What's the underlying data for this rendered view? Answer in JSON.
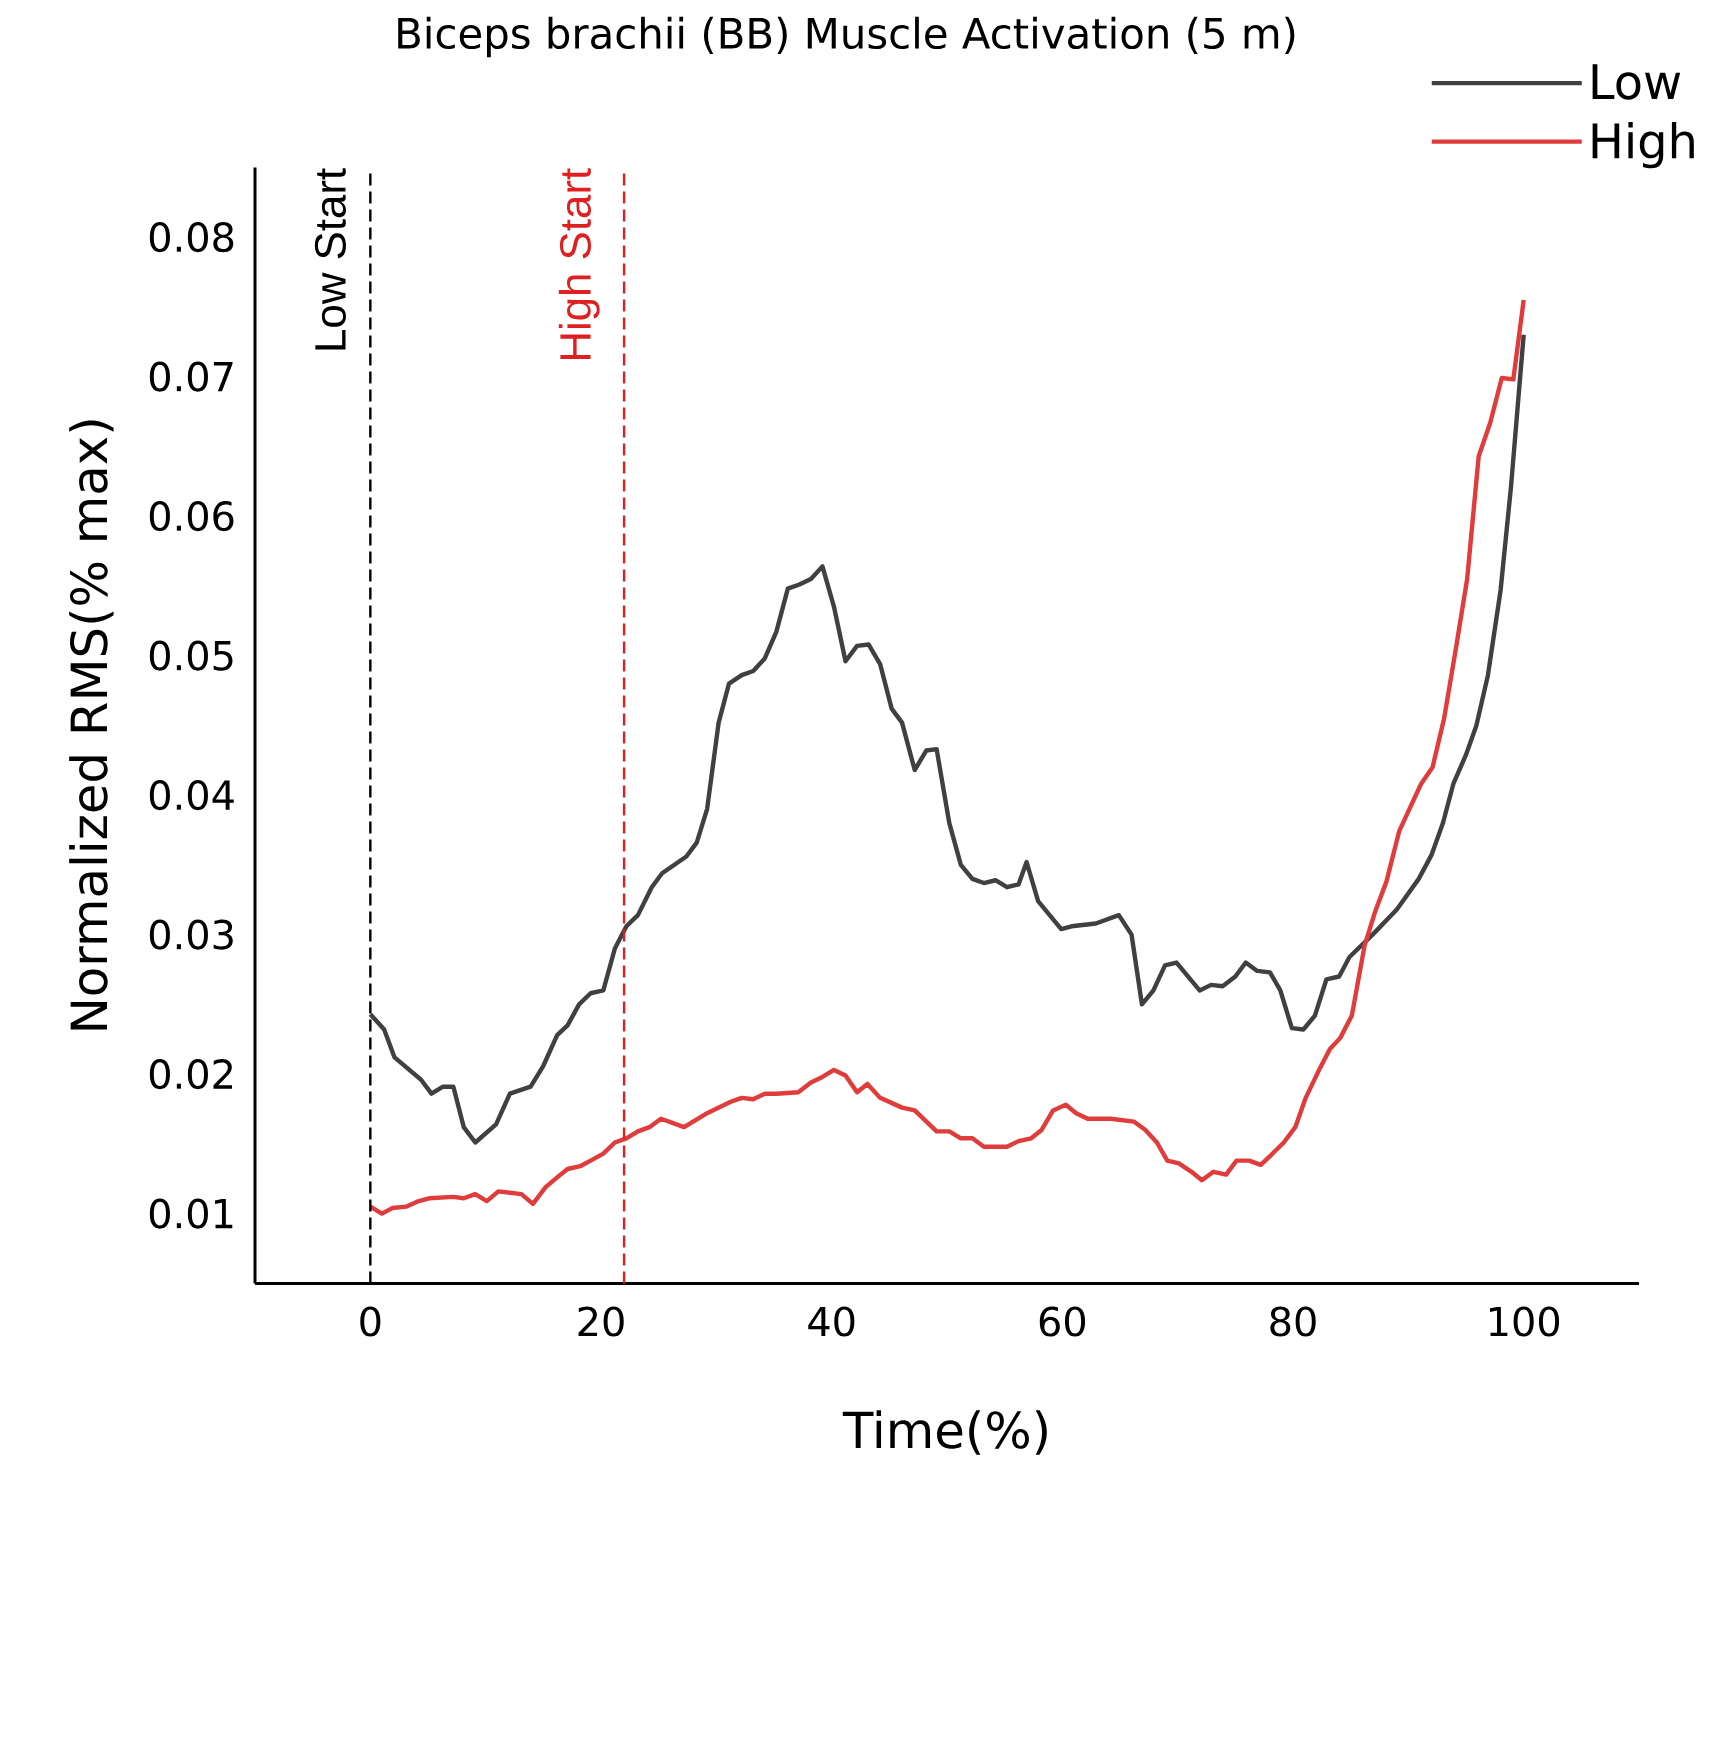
{
  "chart_data": {
    "type": "line",
    "title": "Biceps brachii  (BB)   Muscle Activation (5 m)",
    "xlabel": "Time(%)",
    "ylabel": "Normalized RMS(% max)",
    "xlim": [
      -10,
      110
    ],
    "ylim": [
      0.005,
      0.085
    ],
    "xticks": [
      0,
      20,
      40,
      60,
      80,
      100
    ],
    "yticks": [
      0.01,
      0.02,
      0.03,
      0.04,
      0.05,
      0.06,
      0.07,
      0.08
    ],
    "legend": "top right",
    "grid": false,
    "marker": "none",
    "line_style": "solid",
    "ref_lines": [
      {
        "axis": "x",
        "value": 0,
        "label": "Low Start",
        "color": "#000000",
        "line_style": "dashed"
      },
      {
        "axis": "x",
        "value": 22,
        "label": "High Start",
        "color": "#e02020",
        "line_style": "dashed"
      }
    ],
    "series": [
      {
        "name": "Low",
        "color": "#404040",
        "x": [
          0,
          1.2,
          2.1,
          4.4,
          5.3,
          6.3,
          7.2,
          8.1,
          9.1,
          10.9,
          12.1,
          13.9,
          15.0,
          16.2,
          17.1,
          18.1,
          19.1,
          20.2,
          21.2,
          22.2,
          23.2,
          24.4,
          25.3,
          27.4,
          28.3,
          29.2,
          30.2,
          31.1,
          32.2,
          33.2,
          34.2,
          35.2,
          36.2,
          37.2,
          38.2,
          39.2,
          40.2,
          41.2,
          42.2,
          43.2,
          44.2,
          45.2,
          46.1,
          47.2,
          48.2,
          49.1,
          50.2,
          51.2,
          52.2,
          53.2,
          54.2,
          55.2,
          56.2,
          56.9,
          57.9,
          59.9,
          60.8,
          62.9,
          64.9,
          66.0,
          66.9,
          67.9,
          68.9,
          69.9,
          71.9,
          72.9,
          73.9,
          75.0,
          75.9,
          76.9,
          78.0,
          78.9,
          79.9,
          80.9,
          81.9,
          82.9,
          84.0,
          84.9,
          86.9,
          89.0,
          90.9,
          92.0,
          93.0,
          93.9,
          95.0,
          95.9,
          96.9,
          98.0,
          98.9,
          100
        ],
        "values": [
          0.0243,
          0.0232,
          0.0212,
          0.0196,
          0.0186,
          0.0191,
          0.0191,
          0.0162,
          0.0151,
          0.0164,
          0.0186,
          0.0191,
          0.0206,
          0.0228,
          0.0235,
          0.025,
          0.0258,
          0.026,
          0.029,
          0.0306,
          0.0314,
          0.0334,
          0.0344,
          0.0356,
          0.0366,
          0.039,
          0.0452,
          0.048,
          0.0486,
          0.0489,
          0.0498,
          0.0517,
          0.0548,
          0.0551,
          0.0555,
          0.0564,
          0.0535,
          0.0496,
          0.0507,
          0.0508,
          0.0494,
          0.0462,
          0.0452,
          0.0418,
          0.0432,
          0.0433,
          0.038,
          0.035,
          0.034,
          0.0337,
          0.0339,
          0.0334,
          0.0336,
          0.0352,
          0.0324,
          0.0304,
          0.0306,
          0.0308,
          0.0314,
          0.03,
          0.025,
          0.026,
          0.0278,
          0.028,
          0.026,
          0.0264,
          0.0263,
          0.027,
          0.028,
          0.0274,
          0.0273,
          0.026,
          0.0233,
          0.0232,
          0.0242,
          0.0268,
          0.027,
          0.0284,
          0.03,
          0.0318,
          0.034,
          0.0357,
          0.038,
          0.0408,
          0.0429,
          0.045,
          0.0486,
          0.0547,
          0.0621,
          0.073
        ]
      },
      {
        "name": "High",
        "color": "#e03c3c",
        "x": [
          0,
          1.0,
          1.9,
          3.1,
          4.2,
          5.1,
          7.2,
          8.1,
          9.1,
          10.1,
          11.1,
          13.1,
          14.1,
          15.2,
          16.2,
          17.1,
          18.2,
          19.1,
          20.2,
          21.2,
          22.2,
          23.2,
          24.2,
          25.2,
          27.2,
          28.2,
          29.2,
          31.2,
          32.2,
          33.2,
          34.2,
          35.2,
          37.1,
          38.2,
          39.2,
          40.2,
          41.2,
          42.2,
          43.1,
          44.2,
          46.1,
          47.2,
          49.1,
          50.2,
          51.2,
          52.2,
          53.2,
          55.2,
          56.2,
          57.3,
          58.2,
          59.2,
          60.3,
          61.2,
          62.2,
          64.2,
          66.2,
          67.2,
          68.2,
          69.1,
          70.1,
          71.2,
          72.1,
          73.1,
          74.2,
          75.1,
          76.2,
          77.2,
          78.1,
          79.2,
          80.2,
          81.1,
          82.2,
          83.2,
          84.1,
          85.1,
          86.2,
          87.1,
          88.1,
          89.2,
          90.2,
          91.1,
          92.1,
          93.1,
          94.1,
          95.1,
          96.1,
          97.1,
          98.1,
          99.1,
          100
        ],
        "values": [
          0.0105,
          0.01,
          0.0104,
          0.0105,
          0.0109,
          0.0111,
          0.0112,
          0.0111,
          0.0114,
          0.0109,
          0.0116,
          0.0114,
          0.0107,
          0.0119,
          0.0126,
          0.0132,
          0.0134,
          0.0138,
          0.0143,
          0.0151,
          0.0154,
          0.0159,
          0.0162,
          0.0168,
          0.0162,
          0.0167,
          0.0172,
          0.018,
          0.0183,
          0.0182,
          0.0186,
          0.0186,
          0.0187,
          0.0194,
          0.0198,
          0.0203,
          0.0199,
          0.0187,
          0.0193,
          0.0183,
          0.0176,
          0.0174,
          0.0159,
          0.0159,
          0.0154,
          0.0154,
          0.0148,
          0.0148,
          0.0152,
          0.0154,
          0.016,
          0.0174,
          0.0178,
          0.0172,
          0.0168,
          0.0168,
          0.0166,
          0.016,
          0.0151,
          0.0138,
          0.0136,
          0.013,
          0.0124,
          0.013,
          0.0128,
          0.0138,
          0.0138,
          0.0135,
          0.0142,
          0.0151,
          0.0162,
          0.0183,
          0.0202,
          0.0218,
          0.0226,
          0.0242,
          0.0292,
          0.0316,
          0.0338,
          0.0374,
          0.0392,
          0.0408,
          0.042,
          0.0455,
          0.0504,
          0.0555,
          0.0643,
          0.0667,
          0.0699,
          0.0698,
          0.0755
        ]
      }
    ]
  }
}
